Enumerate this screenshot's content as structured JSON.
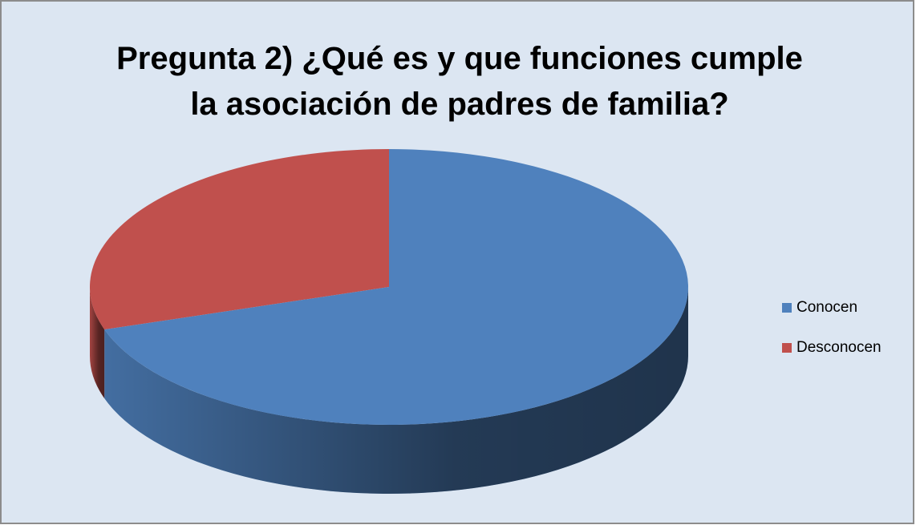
{
  "chart_data": {
    "type": "pie3d",
    "title": [
      "Pregunta 2) ¿Qué es y que funciones cumple",
      "la asociación de padres de familia?"
    ],
    "categories": [
      "Conocen",
      "Desconocen"
    ],
    "values": [
      70,
      30
    ],
    "colors": [
      "#4f81bd",
      "#c0504d"
    ],
    "legend": "right"
  }
}
